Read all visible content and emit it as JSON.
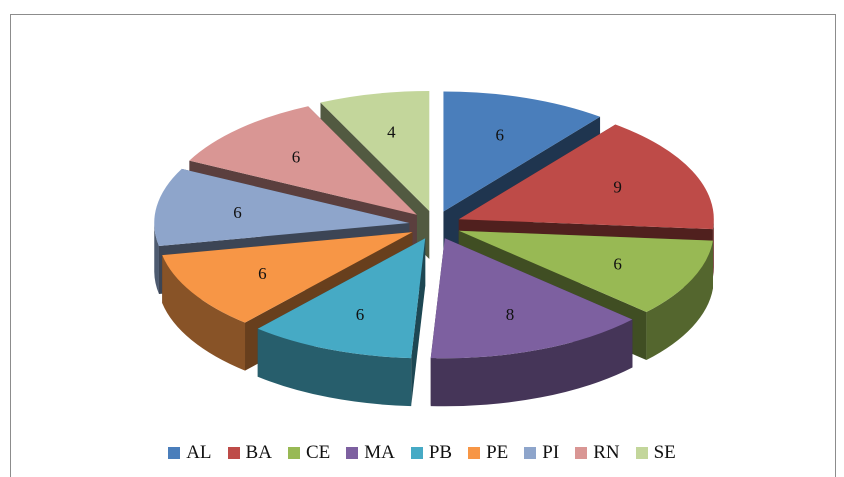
{
  "chart_data": {
    "type": "pie",
    "style": "3d-exploded",
    "categories": [
      "AL",
      "BA",
      "CE",
      "MA",
      "PB",
      "PE",
      "PI",
      "RN",
      "SE"
    ],
    "values": [
      6,
      9,
      6,
      8,
      6,
      6,
      6,
      6,
      4
    ],
    "data_labels": [
      "6",
      "9",
      "6",
      "8",
      "6",
      "6",
      "6",
      "6",
      "4"
    ],
    "colors": [
      "#4a7ebb",
      "#be4b48",
      "#98b954",
      "#7d60a0",
      "#46aac5",
      "#f79646",
      "#8ea5cb",
      "#d99694",
      "#c3d69b"
    ],
    "legend_position": "bottom"
  },
  "legend": [
    {
      "label": "AL",
      "color": "#4a7ebb"
    },
    {
      "label": "BA",
      "color": "#be4b48"
    },
    {
      "label": "CE",
      "color": "#98b954"
    },
    {
      "label": "MA",
      "color": "#7d60a0"
    },
    {
      "label": "PB",
      "color": "#46aac5"
    },
    {
      "label": "PE",
      "color": "#f79646"
    },
    {
      "label": "PI",
      "color": "#8ea5cb"
    },
    {
      "label": "RN",
      "color": "#d99694"
    },
    {
      "label": "SE",
      "color": "#c3d69b"
    }
  ]
}
